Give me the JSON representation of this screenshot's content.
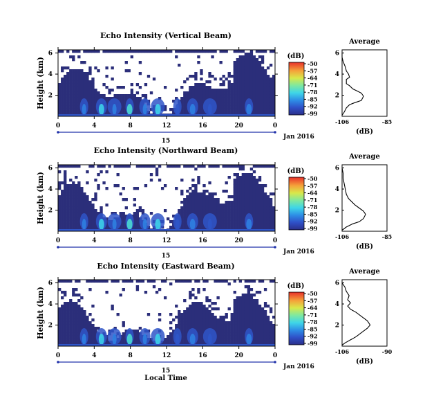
{
  "chart_data": [
    {
      "type": "heatmap",
      "title": "Echo Intensity (Vertical Beam)",
      "ylabel": "Height (km)",
      "yticks": [
        "6",
        "4",
        "2"
      ],
      "xticks": [
        "0",
        "4",
        "8",
        "12",
        "16",
        "20",
        "0"
      ],
      "date_day": "15",
      "date_month": "Jan 2016",
      "colorbar": {
        "unit": "(dB)",
        "ticks": [
          "-50",
          "-57",
          "-64",
          "-71",
          "-78",
          "-85",
          "-92",
          "-99"
        ]
      },
      "profile": {
        "title": "Average",
        "xlabel": "(dB)",
        "xticks": [
          "-106",
          "-85"
        ],
        "yticks": [
          "6",
          "4",
          "2"
        ],
        "xlim": [
          -106,
          -85
        ],
        "points": [
          [
            -106,
            0.1
          ],
          [
            -105,
            0.4
          ],
          [
            -104,
            0.8
          ],
          [
            -102.5,
            1.1
          ],
          [
            -100,
            1.3
          ],
          [
            -98.5,
            1.4
          ],
          [
            -97,
            1.5
          ],
          [
            -96,
            1.9
          ],
          [
            -97,
            2.2
          ],
          [
            -99,
            2.4
          ],
          [
            -101,
            2.6
          ],
          [
            -102.5,
            2.9
          ],
          [
            -104,
            3.1
          ],
          [
            -104,
            3.5
          ],
          [
            -102.5,
            3.7
          ],
          [
            -103,
            4.0
          ],
          [
            -104,
            4.3
          ],
          [
            -104.5,
            4.7
          ],
          [
            -105.5,
            5.2
          ],
          [
            -106,
            5.6
          ],
          [
            -106,
            6.0
          ]
        ]
      }
    },
    {
      "type": "heatmap",
      "title": "Echo Intensity (Northward Beam)",
      "ylabel": "Height (km)",
      "yticks": [
        "6",
        "4",
        "2"
      ],
      "xticks": [
        "0",
        "4",
        "8",
        "12",
        "16",
        "20",
        "0"
      ],
      "date_day": "15",
      "date_month": "Jan 2016",
      "colorbar": {
        "unit": "(dB)",
        "ticks": [
          "-50",
          "-57",
          "-64",
          "-71",
          "-78",
          "-85",
          "-92",
          "-99"
        ]
      },
      "profile": {
        "title": "Average",
        "xlabel": "(dB)",
        "xticks": [
          "-106",
          "-85"
        ],
        "yticks": [
          "6",
          "4",
          "2"
        ],
        "xlim": [
          -106,
          -85
        ],
        "points": [
          [
            -106,
            0.1
          ],
          [
            -104,
            0.4
          ],
          [
            -101,
            0.7
          ],
          [
            -98,
            0.9
          ],
          [
            -96,
            1.2
          ],
          [
            -95,
            1.6
          ],
          [
            -96,
            1.9
          ],
          [
            -98,
            2.2
          ],
          [
            -100,
            2.5
          ],
          [
            -101.5,
            2.8
          ],
          [
            -103,
            3.1
          ],
          [
            -104,
            3.5
          ],
          [
            -104.5,
            4.0
          ],
          [
            -105,
            4.5
          ],
          [
            -105.5,
            5.0
          ],
          [
            -105.5,
            5.5
          ],
          [
            -106,
            6.0
          ]
        ]
      }
    },
    {
      "type": "heatmap",
      "title": "Echo Intensity (Eastward Beam)",
      "ylabel": "Height (km)",
      "yticks": [
        "6",
        "4",
        "2"
      ],
      "xticks": [
        "0",
        "4",
        "8",
        "12",
        "16",
        "20",
        "0"
      ],
      "date_day": "15",
      "date_month": "Jan 2016",
      "xlabel": "Local Time",
      "colorbar": {
        "unit": "(dB)",
        "ticks": [
          "-50",
          "-57",
          "-64",
          "-71",
          "-78",
          "-85",
          "-92",
          "-99"
        ]
      },
      "profile": {
        "title": "Average",
        "xlabel": "(dB)",
        "xticks": [
          "-106",
          "-90"
        ],
        "yticks": [
          "6",
          "4",
          "2"
        ],
        "xlim": [
          -106,
          -90
        ],
        "points": [
          [
            -106,
            0.1
          ],
          [
            -105,
            0.3
          ],
          [
            -103,
            0.6
          ],
          [
            -101,
            0.9
          ],
          [
            -99,
            1.3
          ],
          [
            -97,
            1.7
          ],
          [
            -96,
            2.0
          ],
          [
            -97,
            2.4
          ],
          [
            -99,
            2.8
          ],
          [
            -101,
            3.2
          ],
          [
            -103,
            3.5
          ],
          [
            -104,
            3.8
          ],
          [
            -103,
            4.1
          ],
          [
            -104,
            4.4
          ],
          [
            -103.5,
            4.8
          ],
          [
            -104.5,
            5.2
          ],
          [
            -105,
            5.6
          ],
          [
            -106,
            6.0
          ]
        ]
      }
    }
  ]
}
